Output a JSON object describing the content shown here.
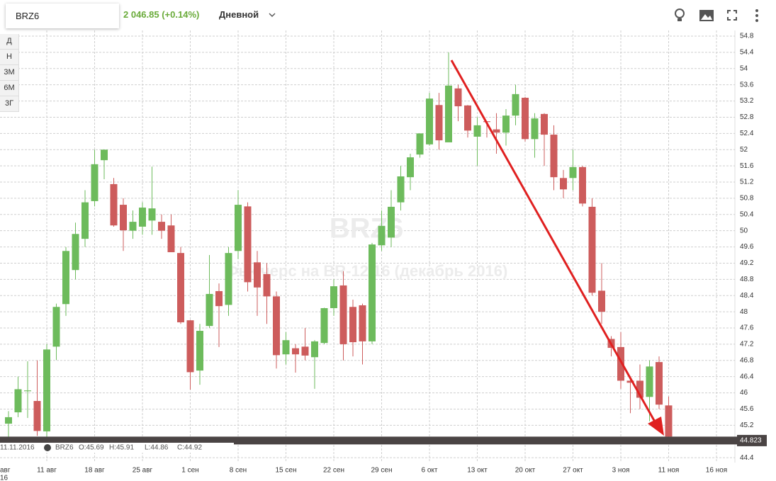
{
  "toolbar": {
    "symbol": "BRZ6",
    "quote": "2 046.85 (+0.14%)",
    "interval": "Дневной"
  },
  "periods": [
    "Д",
    "Н",
    "3М",
    "6М",
    "3Г"
  ],
  "info": {
    "date": "11.11.2016",
    "symbol": "BRZ6",
    "open": "O:45.69",
    "high": "H:45.91",
    "low": "L:44.86",
    "close": "C:44.92"
  },
  "axis_cut": {
    "month": "авг",
    "year": "16"
  },
  "chart_data": {
    "type": "candlestick",
    "watermark": "BRZ6",
    "watermark_subtitle": "Фьючерс на BR-12.16 (декабрь 2016)",
    "up_color": "#6dbb5c",
    "down_color": "#cd5c5c",
    "grid": true,
    "categories": [
      null,
      null,
      null,
      null,
      "11 авг",
      null,
      null,
      null,
      null,
      "18 авг",
      null,
      null,
      null,
      null,
      "25 авг",
      null,
      null,
      null,
      null,
      "1 сен",
      null,
      null,
      null,
      null,
      "8 сен",
      null,
      null,
      null,
      null,
      "15 сен",
      null,
      null,
      null,
      null,
      "22 сен",
      null,
      null,
      null,
      null,
      "29 сен",
      null,
      null,
      null,
      null,
      "6 окт",
      null,
      null,
      null,
      null,
      "13 окт",
      null,
      null,
      null,
      null,
      "20 окт",
      null,
      null,
      null,
      null,
      "27 окт",
      null,
      null,
      null,
      null,
      "3 ноя",
      null,
      null,
      null,
      null,
      "11 ноя",
      null,
      null,
      null,
      null,
      "16 ноя"
    ],
    "open": [
      45.24,
      45.52,
      46.04,
      45.8,
      45.05,
      47.14,
      48.19,
      49.03,
      49.8,
      50.73,
      51.74,
      51.15,
      50.64,
      50.0,
      50.1,
      50.25,
      50.22,
      50.13,
      49.45,
      47.79,
      46.55,
      47.65,
      48.51,
      48.17,
      49.5,
      50.6,
      49.22,
      48.93,
      48.38,
      46.95,
      47.1,
      47.14,
      46.88,
      47.23,
      48.09,
      48.65,
      48.12,
      48.16,
      47.27,
      49.64,
      49.83,
      50.7,
      51.32,
      51.88,
      52.13,
      53.1,
      52.18,
      53.51,
      53.09,
      52.32,
      52.7,
      52.5,
      52.42,
      52.84,
      53.28,
      52.26,
      52.88,
      52.37,
      51.3,
      51.3,
      51.57,
      50.59,
      48.52,
      47.33,
      47.13,
      46.3,
      46.3,
      45.9,
      46.76,
      45.69,
      null,
      null,
      null,
      null,
      null
    ],
    "high": [
      45.55,
      46.4,
      46.78,
      46.8,
      47.2,
      48.2,
      49.6,
      50.2,
      51.0,
      52.0,
      52.0,
      51.3,
      50.8,
      50.5,
      50.7,
      51.58,
      50.4,
      50.4,
      49.6,
      47.8,
      47.7,
      49.4,
      48.7,
      49.6,
      51.0,
      50.7,
      49.5,
      49.2,
      48.5,
      47.5,
      47.2,
      47.6,
      47.3,
      48.1,
      48.8,
      49.0,
      48.3,
      48.2,
      49.7,
      50.5,
      51.0,
      51.6,
      51.9,
      52.4,
      53.4,
      53.4,
      54.4,
      53.6,
      53.1,
      52.8,
      52.7,
      52.9,
      53.0,
      53.6,
      53.3,
      52.9,
      52.9,
      52.6,
      51.5,
      52.0,
      51.6,
      50.8,
      49.2,
      47.4,
      47.5,
      46.4,
      46.7,
      46.8,
      46.9,
      45.91,
      null,
      null,
      null,
      null,
      null
    ],
    "low": [
      44.85,
      45.4,
      45.38,
      44.94,
      44.9,
      46.81,
      47.9,
      48.8,
      49.6,
      50.6,
      51.27,
      50.1,
      49.5,
      49.8,
      49.9,
      49.9,
      49.8,
      49.5,
      47.7,
      46.08,
      46.2,
      47.6,
      47.13,
      47.9,
      49.3,
      48.5,
      47.9,
      47.7,
      46.6,
      46.7,
      46.5,
      46.8,
      46.1,
      47.2,
      47.9,
      46.8,
      46.9,
      46.7,
      47.2,
      49.5,
      49.6,
      50.5,
      51.0,
      51.8,
      52.1,
      52.0,
      52.2,
      52.7,
      52.3,
      51.6,
      52.3,
      51.9,
      52.1,
      52.6,
      52.2,
      51.8,
      51.6,
      51.0,
      50.8,
      51.0,
      50.6,
      48.4,
      47.7,
      46.9,
      46.1,
      45.5,
      45.6,
      45.3,
      45.6,
      44.86,
      null,
      null,
      null,
      null,
      null
    ],
    "close": [
      45.4,
      46.09,
      46.06,
      45.06,
      47.07,
      48.12,
      49.5,
      49.92,
      50.7,
      51.64,
      52.0,
      50.13,
      50.01,
      50.22,
      50.57,
      50.55,
      50.0,
      49.47,
      47.74,
      46.51,
      47.53,
      48.44,
      48.14,
      49.45,
      50.64,
      48.73,
      48.6,
      48.38,
      46.93,
      47.3,
      46.95,
      46.92,
      47.27,
      48.09,
      48.63,
      47.2,
      47.25,
      47.27,
      49.66,
      50.12,
      50.59,
      51.34,
      51.81,
      52.4,
      53.26,
      52.23,
      53.58,
      53.07,
      52.47,
      52.6,
      52.68,
      52.42,
      52.84,
      53.37,
      52.26,
      52.77,
      52.37,
      51.32,
      51.02,
      51.57,
      50.67,
      48.47,
      48.0,
      47.11,
      46.3,
      46.25,
      45.88,
      46.65,
      45.71,
      44.92,
      null,
      null,
      null,
      null,
      null
    ],
    "last_price": 44.823,
    "ylim": [
      44.28,
      54.94
    ],
    "yticks": [
      44.4,
      44.8,
      45.2,
      45.6,
      46,
      46.4,
      46.8,
      47.2,
      47.6,
      48,
      48.4,
      48.8,
      49.2,
      49.6,
      50,
      50.4,
      50.8,
      51.2,
      51.6,
      52,
      52.4,
      52.8,
      53.2,
      53.6,
      54,
      54.4,
      54.8
    ]
  }
}
